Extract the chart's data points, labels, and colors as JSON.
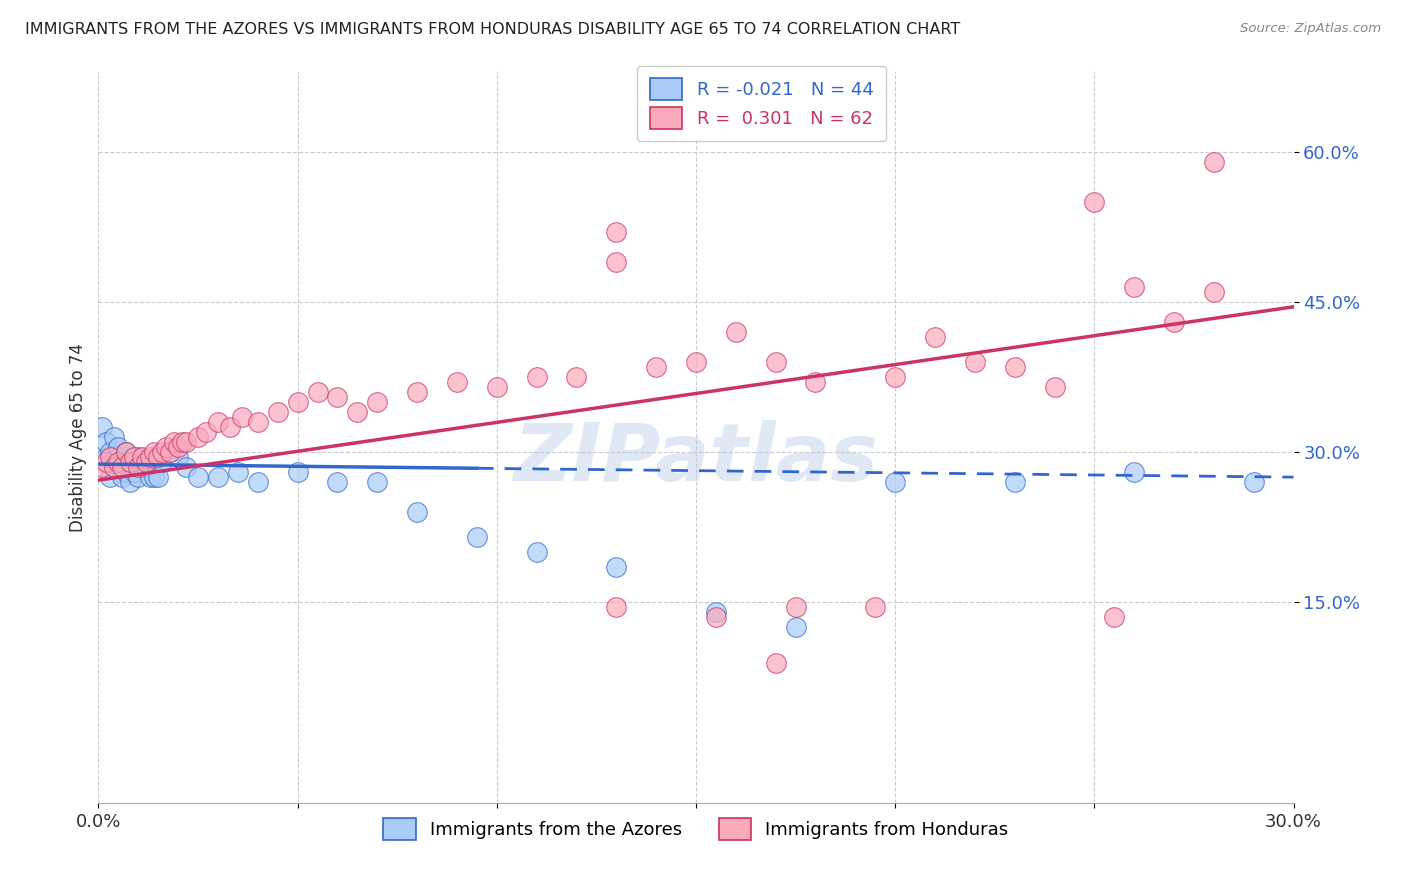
{
  "title": "IMMIGRANTS FROM THE AZORES VS IMMIGRANTS FROM HONDURAS DISABILITY AGE 65 TO 74 CORRELATION CHART",
  "source": "Source: ZipAtlas.com",
  "ylabel": "Disability Age 65 to 74",
  "legend_azores": "Immigrants from the Azores",
  "legend_honduras": "Immigrants from Honduras",
  "r_azores": "-0.021",
  "n_azores": "44",
  "r_honduras": "0.301",
  "n_honduras": "62",
  "xlim": [
    0.0,
    0.3
  ],
  "ylim": [
    -0.05,
    0.68
  ],
  "yticks": [
    0.15,
    0.3,
    0.45,
    0.6
  ],
  "ytick_labels": [
    "15.0%",
    "30.0%",
    "45.0%",
    "60.0%"
  ],
  "xticks": [
    0.0,
    0.05,
    0.1,
    0.15,
    0.2,
    0.25,
    0.3
  ],
  "xtick_labels": [
    "0.0%",
    "",
    "",
    "",
    "",
    "",
    "30.0%"
  ],
  "color_azores": "#aaccf8",
  "color_honduras": "#f8aabb",
  "line_color_azores": "#3366cc",
  "line_color_honduras": "#cc3366",
  "watermark": "ZIPatlas",
  "background_color": "#ffffff",
  "grid_color": "#cccccc",
  "azores_x": [
    0.001,
    0.002,
    0.002,
    0.003,
    0.003,
    0.004,
    0.004,
    0.005,
    0.005,
    0.006,
    0.006,
    0.007,
    0.007,
    0.008,
    0.008,
    0.009,
    0.01,
    0.01,
    0.011,
    0.012,
    0.013,
    0.014,
    0.015,
    0.016,
    0.018,
    0.02,
    0.022,
    0.025,
    0.03,
    0.035,
    0.04,
    0.05,
    0.06,
    0.07,
    0.08,
    0.095,
    0.11,
    0.13,
    0.155,
    0.175,
    0.2,
    0.23,
    0.26,
    0.29
  ],
  "azores_y": [
    0.325,
    0.295,
    0.31,
    0.275,
    0.3,
    0.315,
    0.285,
    0.295,
    0.305,
    0.275,
    0.29,
    0.28,
    0.3,
    0.27,
    0.29,
    0.28,
    0.275,
    0.295,
    0.285,
    0.285,
    0.275,
    0.275,
    0.275,
    0.29,
    0.3,
    0.295,
    0.285,
    0.275,
    0.275,
    0.28,
    0.27,
    0.28,
    0.27,
    0.27,
    0.24,
    0.215,
    0.2,
    0.185,
    0.14,
    0.125,
    0.27,
    0.27,
    0.28,
    0.27
  ],
  "honduras_x": [
    0.001,
    0.002,
    0.003,
    0.004,
    0.005,
    0.006,
    0.007,
    0.008,
    0.009,
    0.01,
    0.011,
    0.012,
    0.013,
    0.014,
    0.015,
    0.016,
    0.017,
    0.018,
    0.019,
    0.02,
    0.021,
    0.022,
    0.025,
    0.027,
    0.03,
    0.033,
    0.036,
    0.04,
    0.045,
    0.05,
    0.055,
    0.06,
    0.065,
    0.07,
    0.08,
    0.09,
    0.1,
    0.11,
    0.12,
    0.13,
    0.14,
    0.15,
    0.16,
    0.17,
    0.18,
    0.2,
    0.21,
    0.22,
    0.23,
    0.24,
    0.25,
    0.26,
    0.27,
    0.28,
    0.13,
    0.155,
    0.17,
    0.195,
    0.13,
    0.175,
    0.255,
    0.28
  ],
  "honduras_y": [
    0.285,
    0.29,
    0.295,
    0.285,
    0.29,
    0.285,
    0.3,
    0.29,
    0.295,
    0.285,
    0.295,
    0.29,
    0.295,
    0.3,
    0.295,
    0.3,
    0.305,
    0.3,
    0.31,
    0.305,
    0.31,
    0.31,
    0.315,
    0.32,
    0.33,
    0.325,
    0.335,
    0.33,
    0.34,
    0.35,
    0.36,
    0.355,
    0.34,
    0.35,
    0.36,
    0.37,
    0.365,
    0.375,
    0.375,
    0.52,
    0.385,
    0.39,
    0.42,
    0.39,
    0.37,
    0.375,
    0.415,
    0.39,
    0.385,
    0.365,
    0.55,
    0.465,
    0.43,
    0.59,
    0.145,
    0.135,
    0.09,
    0.145,
    0.49,
    0.145,
    0.135,
    0.46
  ],
  "line_azores_x0": 0.0,
  "line_azores_x1": 0.3,
  "line_azores_y0": 0.288,
  "line_azores_y1": 0.275,
  "line_honduras_x0": 0.0,
  "line_honduras_x1": 0.3,
  "line_honduras_y0": 0.272,
  "line_honduras_y1": 0.445,
  "line_solid_end_azores": 0.095
}
